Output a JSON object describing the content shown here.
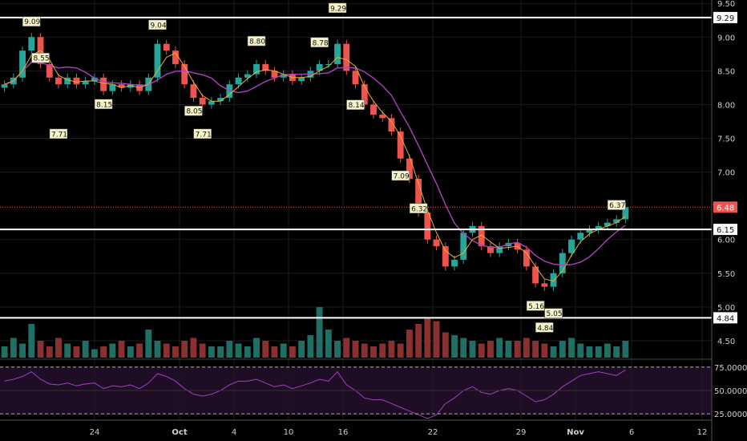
{
  "chart_data": [
    {
      "type": "candlestick",
      "x_ticks": [
        "24",
        "Oct",
        "4",
        "10",
        "16",
        "22",
        "29",
        "Nov",
        "6",
        "12"
      ],
      "y_ticks": [
        "9.50",
        "9.00",
        "8.50",
        "8.00",
        "7.50",
        "7.00",
        "6.00",
        "5.50",
        "5.00",
        "4.50"
      ],
      "ylim": [
        4.25,
        9.55
      ],
      "grid": true,
      "horizontal_levels": [
        {
          "label": "9.29",
          "value": 9.29
        },
        {
          "label": "6.15",
          "value": 6.15
        },
        {
          "label": "4.84",
          "value": 4.84
        }
      ],
      "current_price": {
        "label": "6.48",
        "value": 6.48
      },
      "annotations": [
        {
          "text": "9.09",
          "value": 9.09,
          "kind": "high"
        },
        {
          "text": "7.71",
          "value": 7.71,
          "kind": "low"
        },
        {
          "text": "8.55",
          "value": 8.55,
          "kind": "high"
        },
        {
          "text": "8.15",
          "value": 8.15,
          "kind": "low"
        },
        {
          "text": "8.05",
          "value": 8.05,
          "kind": "low"
        },
        {
          "text": "9.04",
          "value": 9.04,
          "kind": "high"
        },
        {
          "text": "7.71",
          "value": 7.71,
          "kind": "low"
        },
        {
          "text": "8.80",
          "value": 8.8,
          "kind": "high"
        },
        {
          "text": "8.78",
          "value": 8.78,
          "kind": "high"
        },
        {
          "text": "8.14",
          "value": 8.14,
          "kind": "low"
        },
        {
          "text": "9.29",
          "value": 9.29,
          "kind": "high"
        },
        {
          "text": "7.09",
          "value": 7.09,
          "kind": "low"
        },
        {
          "text": "6.32",
          "value": 6.32,
          "kind": "high"
        },
        {
          "text": "4.84",
          "value": 4.84,
          "kind": "low"
        },
        {
          "text": "5.16",
          "value": 5.16,
          "kind": "low"
        },
        {
          "text": "5.05",
          "value": 5.05,
          "kind": "low"
        },
        {
          "text": "6.37",
          "value": 6.37,
          "kind": "high"
        }
      ],
      "price_path": [
        8.3,
        8.4,
        8.8,
        9.0,
        8.6,
        8.4,
        8.3,
        8.4,
        8.3,
        8.35,
        8.4,
        8.2,
        8.3,
        8.25,
        8.3,
        8.2,
        8.4,
        8.9,
        8.8,
        8.6,
        8.3,
        8.1,
        8.0,
        8.05,
        8.1,
        8.3,
        8.4,
        8.45,
        8.6,
        8.5,
        8.4,
        8.45,
        8.35,
        8.4,
        8.5,
        8.6,
        8.6,
        8.9,
        8.5,
        8.3,
        8.0,
        7.85,
        7.8,
        7.6,
        7.2,
        6.9,
        6.4,
        6.0,
        5.9,
        5.6,
        5.7,
        6.1,
        6.2,
        5.9,
        5.8,
        5.9,
        5.95,
        5.85,
        5.6,
        5.35,
        5.3,
        5.5,
        5.8,
        6.0,
        6.1,
        6.15,
        6.2,
        6.25,
        6.3,
        6.48
      ],
      "colors": {
        "up": "#26a69a",
        "down": "#ef5350",
        "ma_fast": "#e8b030",
        "ma_slow": "#b040c0"
      }
    },
    {
      "type": "bar",
      "note": "volume",
      "values": [
        0.2,
        0.35,
        0.25,
        0.6,
        0.3,
        0.2,
        0.35,
        0.25,
        0.2,
        0.3,
        0.15,
        0.2,
        0.25,
        0.3,
        0.2,
        0.25,
        0.5,
        0.3,
        0.25,
        0.2,
        0.3,
        0.35,
        0.25,
        0.2,
        0.2,
        0.3,
        0.25,
        0.2,
        0.35,
        0.3,
        0.2,
        0.25,
        0.2,
        0.3,
        0.4,
        0.9,
        0.5,
        0.3,
        0.35,
        0.3,
        0.25,
        0.2,
        0.25,
        0.3,
        0.25,
        0.5,
        0.6,
        0.7,
        0.65,
        0.45,
        0.4,
        0.35,
        0.3,
        0.25,
        0.3,
        0.35,
        0.3,
        0.3,
        0.35,
        0.3,
        0.25,
        0.2,
        0.3,
        0.35,
        0.25,
        0.2,
        0.2,
        0.25,
        0.2,
        0.3
      ]
    },
    {
      "type": "line",
      "note": "RSI",
      "y_ticks": [
        "75.0000",
        "50.0000",
        "25.0000"
      ],
      "ylim": [
        20,
        80
      ],
      "values": [
        60,
        62,
        65,
        70,
        62,
        57,
        56,
        58,
        55,
        57,
        58,
        52,
        55,
        54,
        56,
        52,
        58,
        68,
        65,
        60,
        52,
        46,
        44,
        46,
        50,
        56,
        60,
        60,
        62,
        58,
        54,
        56,
        52,
        55,
        58,
        62,
        60,
        70,
        56,
        50,
        42,
        40,
        40,
        36,
        32,
        28,
        24,
        20,
        24,
        36,
        42,
        50,
        54,
        48,
        46,
        50,
        52,
        50,
        44,
        38,
        40,
        46,
        54,
        60,
        66,
        68,
        70,
        68,
        66,
        72
      ],
      "color": "#a040c0"
    }
  ]
}
